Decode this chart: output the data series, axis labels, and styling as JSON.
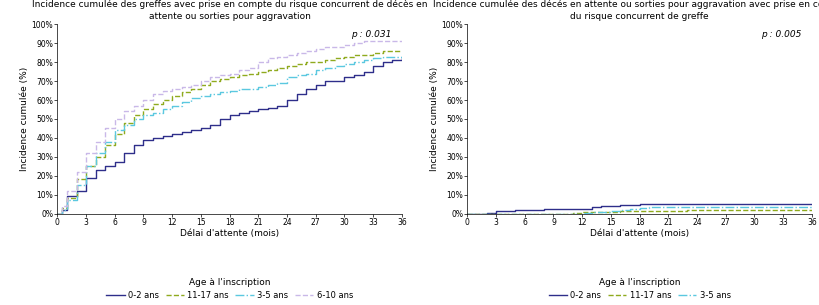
{
  "title1": "Incidence cumulée des greffes avec prise en compte du risque concurrent de décès en\nattente ou sorties pour aggravation",
  "title2": "Incidence cumulée des décés en attente ou sorties pour aggravation avec prise en compte\ndu risque concurrent de greffe",
  "ylabel": "Incidence cumulée (%)",
  "xlabel": "Délai d'attente (mois)",
  "legend_title": "Age à l'inscription",
  "p1": "p : 0.031",
  "p2": "p : 0.005",
  "yticks": [
    0,
    10,
    20,
    30,
    40,
    50,
    60,
    70,
    80,
    90,
    100
  ],
  "ytick_labels": [
    "0%",
    "10%",
    "20%",
    "30%",
    "40%",
    "50%",
    "60%",
    "70%",
    "80%",
    "90%",
    "100%"
  ],
  "xticks": [
    0,
    3,
    6,
    9,
    12,
    15,
    18,
    21,
    24,
    27,
    30,
    33,
    36
  ],
  "xlim": [
    0,
    36
  ],
  "ylim": [
    0,
    100
  ],
  "colors": {
    "0-2 ans": "#2e2e8a",
    "11-17 ans": "#8faa1e",
    "3-5 ans": "#5bc8e0",
    "6-10 ans": "#c9b8e8"
  },
  "legend_labels_plot1": [
    "0-2 ans",
    "11-17 ans",
    "3-5 ans",
    "6-10 ans"
  ],
  "legend_labels_plot2": [
    "0-2 ans",
    "11-17 ans",
    "3-5 ans"
  ],
  "plot1": {
    "0-2 ans": [
      [
        0,
        0
      ],
      [
        0.5,
        2
      ],
      [
        1,
        9
      ],
      [
        2,
        12
      ],
      [
        3,
        19
      ],
      [
        4,
        23
      ],
      [
        5,
        25
      ],
      [
        6,
        27
      ],
      [
        7,
        32
      ],
      [
        8,
        36
      ],
      [
        9,
        39
      ],
      [
        10,
        40
      ],
      [
        11,
        41
      ],
      [
        12,
        42
      ],
      [
        13,
        43
      ],
      [
        14,
        44
      ],
      [
        15,
        45
      ],
      [
        16,
        47
      ],
      [
        17,
        50
      ],
      [
        18,
        52
      ],
      [
        19,
        53
      ],
      [
        20,
        54
      ],
      [
        21,
        55
      ],
      [
        22,
        56
      ],
      [
        23,
        57
      ],
      [
        24,
        60
      ],
      [
        25,
        63
      ],
      [
        26,
        66
      ],
      [
        27,
        68
      ],
      [
        28,
        70
      ],
      [
        29,
        70
      ],
      [
        30,
        72
      ],
      [
        31,
        73
      ],
      [
        32,
        75
      ],
      [
        33,
        78
      ],
      [
        34,
        80
      ],
      [
        35,
        81
      ],
      [
        36,
        83
      ]
    ],
    "11-17 ans": [
      [
        0,
        0
      ],
      [
        0.5,
        3
      ],
      [
        1,
        8
      ],
      [
        2,
        18
      ],
      [
        3,
        25
      ],
      [
        4,
        30
      ],
      [
        5,
        36
      ],
      [
        6,
        42
      ],
      [
        7,
        48
      ],
      [
        8,
        52
      ],
      [
        9,
        55
      ],
      [
        10,
        58
      ],
      [
        11,
        60
      ],
      [
        12,
        62
      ],
      [
        13,
        64
      ],
      [
        14,
        66
      ],
      [
        15,
        68
      ],
      [
        16,
        70
      ],
      [
        17,
        71
      ],
      [
        18,
        72
      ],
      [
        19,
        73
      ],
      [
        20,
        74
      ],
      [
        21,
        75
      ],
      [
        22,
        76
      ],
      [
        23,
        77
      ],
      [
        24,
        78
      ],
      [
        25,
        79
      ],
      [
        26,
        80
      ],
      [
        27,
        80
      ],
      [
        28,
        81
      ],
      [
        29,
        82
      ],
      [
        30,
        83
      ],
      [
        31,
        84
      ],
      [
        32,
        84
      ],
      [
        33,
        85
      ],
      [
        34,
        86
      ],
      [
        35,
        86
      ],
      [
        36,
        86
      ]
    ],
    "3-5 ans": [
      [
        0,
        0
      ],
      [
        0.5,
        2
      ],
      [
        1,
        7
      ],
      [
        2,
        15
      ],
      [
        3,
        25
      ],
      [
        4,
        32
      ],
      [
        5,
        38
      ],
      [
        6,
        44
      ],
      [
        7,
        47
      ],
      [
        8,
        50
      ],
      [
        9,
        52
      ],
      [
        10,
        53
      ],
      [
        11,
        55
      ],
      [
        12,
        57
      ],
      [
        13,
        59
      ],
      [
        14,
        61
      ],
      [
        15,
        62
      ],
      [
        16,
        63
      ],
      [
        17,
        64
      ],
      [
        18,
        65
      ],
      [
        19,
        66
      ],
      [
        20,
        66
      ],
      [
        21,
        67
      ],
      [
        22,
        68
      ],
      [
        23,
        69
      ],
      [
        24,
        72
      ],
      [
        25,
        73
      ],
      [
        26,
        74
      ],
      [
        27,
        76
      ],
      [
        28,
        77
      ],
      [
        29,
        78
      ],
      [
        30,
        79
      ],
      [
        31,
        80
      ],
      [
        32,
        81
      ],
      [
        33,
        82
      ],
      [
        34,
        83
      ],
      [
        35,
        83
      ],
      [
        36,
        83
      ]
    ],
    "6-10 ans": [
      [
        0,
        0
      ],
      [
        0.5,
        4
      ],
      [
        1,
        12
      ],
      [
        2,
        22
      ],
      [
        3,
        32
      ],
      [
        4,
        38
      ],
      [
        5,
        45
      ],
      [
        6,
        50
      ],
      [
        7,
        54
      ],
      [
        8,
        57
      ],
      [
        9,
        60
      ],
      [
        10,
        63
      ],
      [
        11,
        65
      ],
      [
        12,
        66
      ],
      [
        13,
        67
      ],
      [
        14,
        68
      ],
      [
        15,
        70
      ],
      [
        16,
        72
      ],
      [
        17,
        73
      ],
      [
        18,
        74
      ],
      [
        19,
        76
      ],
      [
        20,
        77
      ],
      [
        21,
        80
      ],
      [
        22,
        82
      ],
      [
        23,
        83
      ],
      [
        24,
        84
      ],
      [
        25,
        85
      ],
      [
        26,
        86
      ],
      [
        27,
        87
      ],
      [
        28,
        88
      ],
      [
        29,
        88
      ],
      [
        30,
        89
      ],
      [
        31,
        90
      ],
      [
        32,
        91
      ],
      [
        33,
        91
      ],
      [
        34,
        91
      ],
      [
        35,
        91
      ],
      [
        36,
        91
      ]
    ]
  },
  "plot2": {
    "0-2 ans": [
      [
        0,
        0
      ],
      [
        1,
        0
      ],
      [
        2,
        0.5
      ],
      [
        3,
        1.2
      ],
      [
        4,
        1.5
      ],
      [
        5,
        1.8
      ],
      [
        6,
        2.0
      ],
      [
        7,
        2.1
      ],
      [
        8,
        2.2
      ],
      [
        9,
        2.3
      ],
      [
        10,
        2.4
      ],
      [
        11,
        2.5
      ],
      [
        12,
        2.6
      ],
      [
        13,
        3.5
      ],
      [
        14,
        4.0
      ],
      [
        15,
        4.2
      ],
      [
        16,
        4.5
      ],
      [
        17,
        4.7
      ],
      [
        18,
        4.8
      ],
      [
        19,
        4.8
      ],
      [
        20,
        4.9
      ],
      [
        21,
        5.0
      ],
      [
        22,
        5.0
      ],
      [
        23,
        5.0
      ],
      [
        24,
        5.0
      ],
      [
        25,
        5.0
      ],
      [
        26,
        5.0
      ],
      [
        27,
        5.0
      ],
      [
        28,
        5.0
      ],
      [
        29,
        5.0
      ],
      [
        30,
        5.0
      ],
      [
        31,
        5.0
      ],
      [
        32,
        5.0
      ],
      [
        33,
        5.0
      ],
      [
        34,
        5.0
      ],
      [
        35,
        5.0
      ],
      [
        36,
        5.0
      ]
    ],
    "11-17 ans": [
      [
        0,
        0
      ],
      [
        2,
        0
      ],
      [
        3,
        0
      ],
      [
        4,
        0
      ],
      [
        5,
        0
      ],
      [
        6,
        0
      ],
      [
        7,
        0
      ],
      [
        8,
        0
      ],
      [
        9,
        0
      ],
      [
        10,
        0
      ],
      [
        11,
        0.5
      ],
      [
        12,
        0.7
      ],
      [
        13,
        0.8
      ],
      [
        14,
        0.9
      ],
      [
        15,
        1.0
      ],
      [
        16,
        1.1
      ],
      [
        17,
        1.2
      ],
      [
        18,
        1.3
      ],
      [
        19,
        1.4
      ],
      [
        20,
        1.5
      ],
      [
        21,
        1.5
      ],
      [
        22,
        1.5
      ],
      [
        23,
        1.6
      ],
      [
        24,
        1.6
      ],
      [
        25,
        1.6
      ],
      [
        26,
        1.6
      ],
      [
        27,
        1.7
      ],
      [
        28,
        1.7
      ],
      [
        29,
        1.7
      ],
      [
        30,
        1.7
      ],
      [
        31,
        1.7
      ],
      [
        32,
        1.8
      ],
      [
        33,
        1.8
      ],
      [
        34,
        1.8
      ],
      [
        35,
        1.8
      ],
      [
        36,
        1.8
      ]
    ],
    "3-5 ans": [
      [
        0,
        0
      ],
      [
        1,
        0
      ],
      [
        2,
        0
      ],
      [
        3,
        0
      ],
      [
        4,
        0
      ],
      [
        5,
        0
      ],
      [
        6,
        0
      ],
      [
        7,
        0
      ],
      [
        8,
        0
      ],
      [
        9,
        0
      ],
      [
        10,
        0
      ],
      [
        11,
        0
      ],
      [
        12,
        0.5
      ],
      [
        13,
        0.8
      ],
      [
        14,
        1.0
      ],
      [
        15,
        1.5
      ],
      [
        16,
        2.0
      ],
      [
        17,
        2.5
      ],
      [
        18,
        3.0
      ],
      [
        19,
        3.2
      ],
      [
        20,
        3.3
      ],
      [
        21,
        3.5
      ],
      [
        22,
        3.5
      ],
      [
        23,
        3.5
      ],
      [
        24,
        3.5
      ],
      [
        25,
        3.5
      ],
      [
        26,
        3.5
      ],
      [
        27,
        3.5
      ],
      [
        28,
        3.5
      ],
      [
        29,
        3.5
      ],
      [
        30,
        3.5
      ],
      [
        31,
        3.5
      ],
      [
        32,
        3.5
      ],
      [
        33,
        3.5
      ],
      [
        34,
        3.5
      ],
      [
        35,
        3.5
      ],
      [
        36,
        3.5
      ]
    ]
  },
  "background_color": "#ffffff",
  "plot_bg_color": "#ffffff"
}
